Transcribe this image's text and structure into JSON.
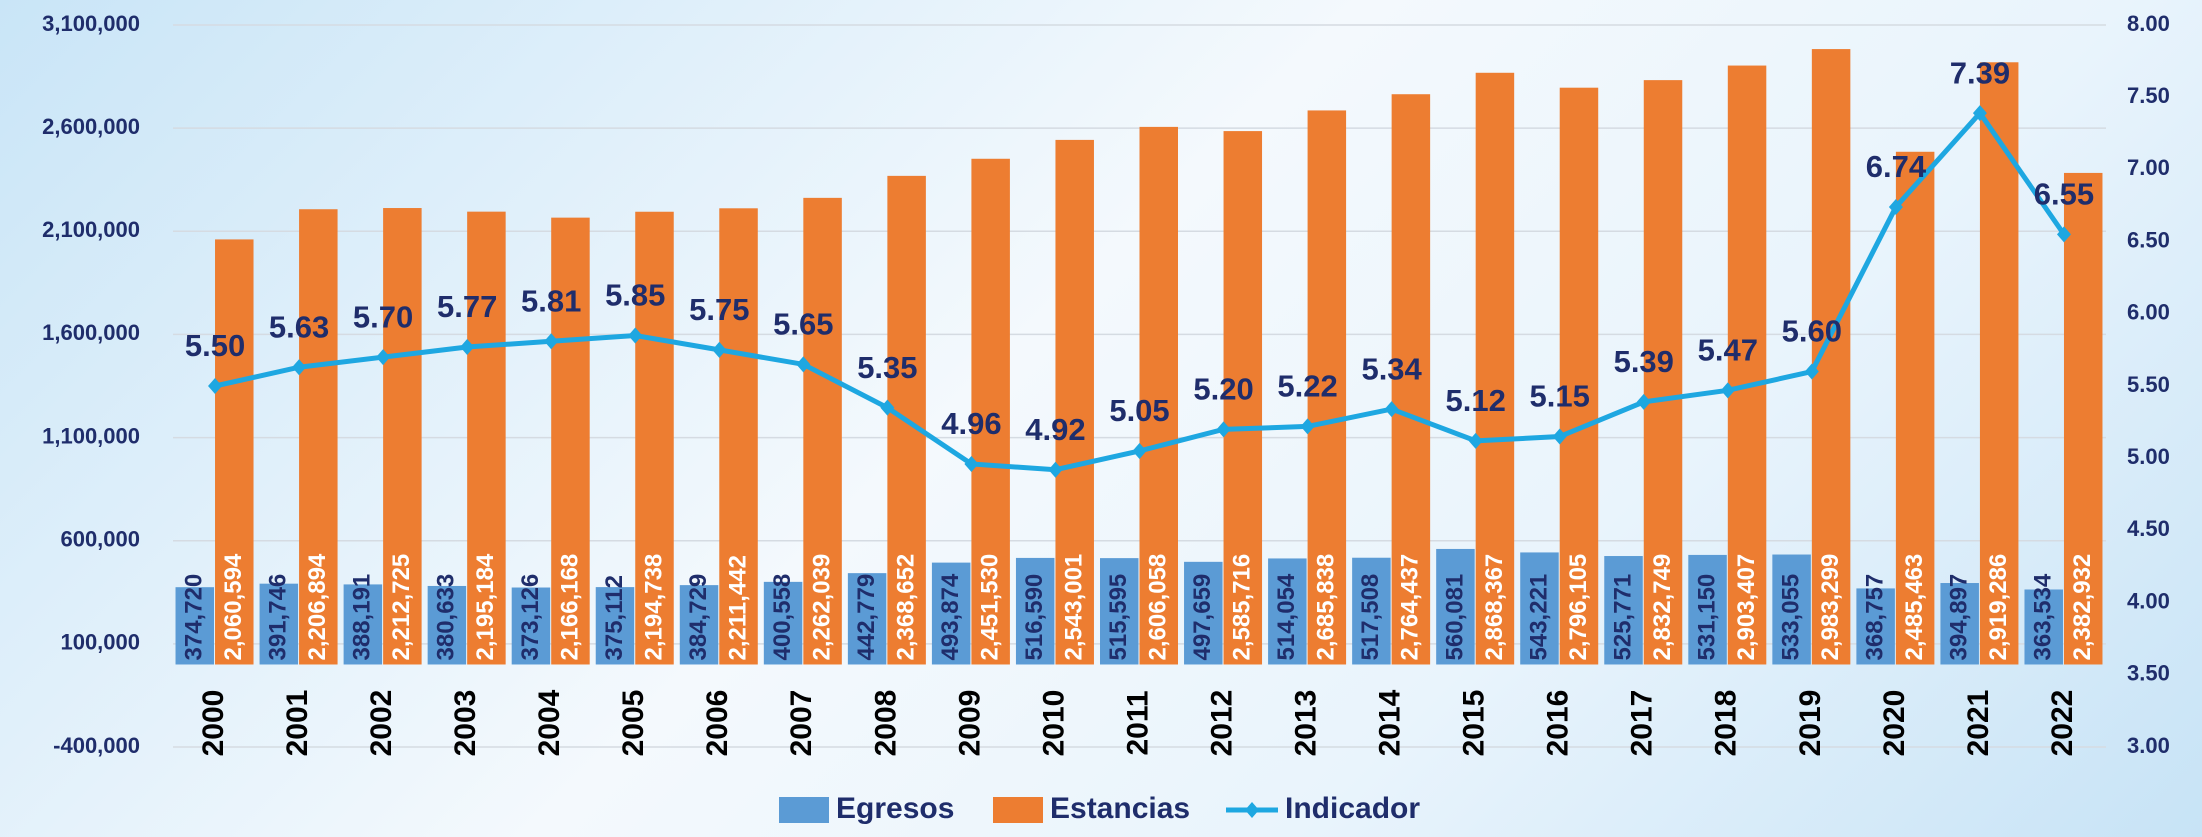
{
  "chart_data": {
    "type": "bar",
    "categories": [
      "2000",
      "2001",
      "2002",
      "2003",
      "2004",
      "2005",
      "2006",
      "2007",
      "2008",
      "2009",
      "2010",
      "2011",
      "2012",
      "2013",
      "2014",
      "2015",
      "2016",
      "2017",
      "2018",
      "2019",
      "2020",
      "2021",
      "2022"
    ],
    "series": [
      {
        "name": "Egresos",
        "type": "bar",
        "color": "#5b9bd5",
        "values": [
          374720,
          391746,
          388191,
          380633,
          373126,
          375112,
          384729,
          400558,
          442779,
          493874,
          516590,
          515595,
          497659,
          514054,
          517508,
          560081,
          543221,
          525771,
          531150,
          533055,
          368757,
          394897,
          363534
        ],
        "value_labels": [
          "374,720",
          "391,746",
          "388,191",
          "380,633",
          "373,126",
          "375,112",
          "384,729",
          "400,558",
          "442,779",
          "493,874",
          "516,590",
          "515,595",
          "497,659",
          "514,054",
          "517,508",
          "560,081",
          "543,221",
          "525,771",
          "531,150",
          "533,055",
          "368,757",
          "394,897",
          "363,534"
        ]
      },
      {
        "name": "Estancias",
        "type": "bar",
        "color": "#ed7d31",
        "values": [
          2060594,
          2206894,
          2212725,
          2195184,
          2166168,
          2194738,
          2211442,
          2262039,
          2368652,
          2451530,
          2543001,
          2606058,
          2585716,
          2685838,
          2764437,
          2868367,
          2796105,
          2832749,
          2903407,
          2983299,
          2485463,
          2919286,
          2382932
        ],
        "value_labels": [
          "2,060,594",
          "2,206,894",
          "2,212,725",
          "2,195,184",
          "2,166,168",
          "2,194,738",
          "2,211,442",
          "2,262,039",
          "2,368,652",
          "2,451,530",
          "2,543,001",
          "2,606,058",
          "2,585,716",
          "2,685,838",
          "2,764,437",
          "2,868,367",
          "2,796,105",
          "2,832,749",
          "2,903,407",
          "2,983,299",
          "2,485,463",
          "2,919,286",
          "2,382,932"
        ]
      },
      {
        "name": "Indicador",
        "type": "line",
        "axis": "y2",
        "color": "#1ea7e1",
        "values": [
          5.5,
          5.63,
          5.7,
          5.77,
          5.81,
          5.85,
          5.75,
          5.65,
          5.35,
          4.96,
          4.92,
          5.05,
          5.2,
          5.22,
          5.34,
          5.12,
          5.15,
          5.39,
          5.47,
          5.6,
          6.74,
          7.39,
          6.55
        ],
        "value_labels": [
          "5.50",
          "5.63",
          "5.70",
          "5.77",
          "5.81",
          "5.85",
          "5.75",
          "5.65",
          "5.35",
          "4.96",
          "4.92",
          "5.05",
          "5.20",
          "5.22",
          "5.34",
          "5.12",
          "5.15",
          "5.39",
          "5.47",
          "5.60",
          "6.74",
          "7.39",
          "6.55"
        ]
      }
    ],
    "ylim": [
      -400000,
      3100000
    ],
    "yticks": [
      {
        "value": -400000,
        "label": "-400,000"
      },
      {
        "value": 100000,
        "label": "100,000"
      },
      {
        "value": 600000,
        "label": "600,000"
      },
      {
        "value": 1100000,
        "label": "1,100,000"
      },
      {
        "value": 1600000,
        "label": "1,600,000"
      },
      {
        "value": 2100000,
        "label": "2,100,000"
      },
      {
        "value": 2600000,
        "label": "2,600,000"
      },
      {
        "value": 3100000,
        "label": "3,100,000"
      }
    ],
    "y2lim": [
      3,
      8
    ],
    "y2ticks": [
      {
        "value": 3,
        "label": "3.00"
      },
      {
        "value": 3.5,
        "label": "3.50"
      },
      {
        "value": 4,
        "label": "4.00"
      },
      {
        "value": 4.5,
        "label": "4.50"
      },
      {
        "value": 5,
        "label": "5.00"
      },
      {
        "value": 5.5,
        "label": "5.50"
      },
      {
        "value": 6,
        "label": "6.00"
      },
      {
        "value": 6.5,
        "label": "6.50"
      },
      {
        "value": 7,
        "label": "7.00"
      },
      {
        "value": 7.5,
        "label": "7.50"
      },
      {
        "value": 8,
        "label": "8.00"
      }
    ],
    "grid": true,
    "legend": "bottom"
  }
}
